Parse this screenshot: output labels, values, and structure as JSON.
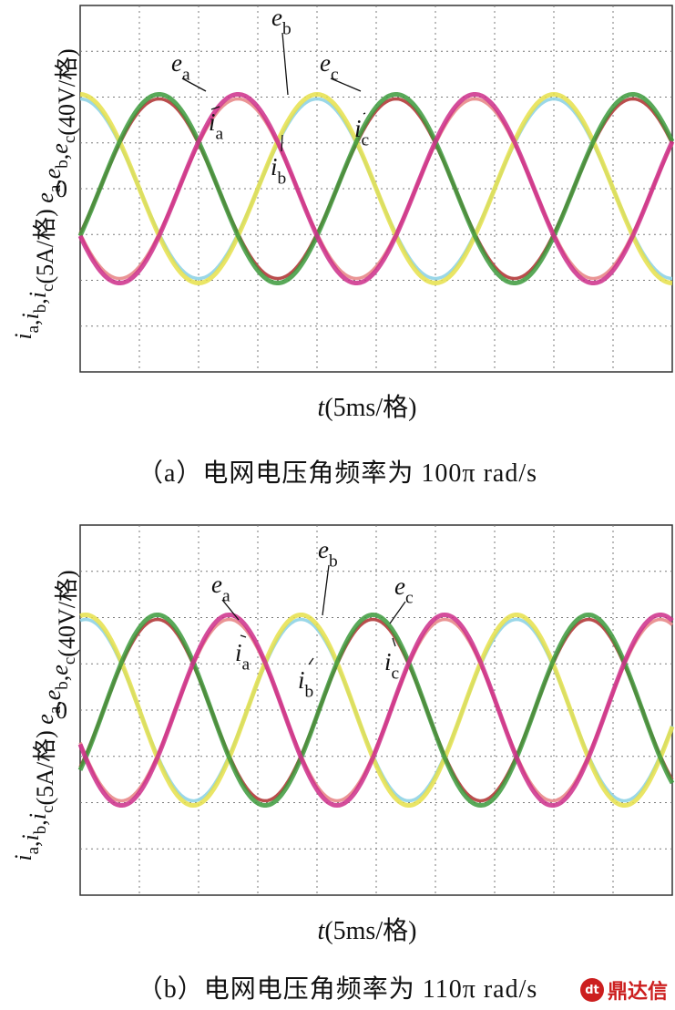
{
  "colors": {
    "a_voltage": "#e6e04a",
    "a_current": "#8fd3e6",
    "b_voltage": "#3c9a3c",
    "b_current": "#b33a3a",
    "c_voltage": "#cc2e8a",
    "c_current": "#e8898a",
    "grid": "#7a7a7a",
    "frame": "#333333",
    "watermark": "#cc1f1f"
  },
  "chart_data": [
    {
      "type": "line",
      "panel": "a",
      "caption": "（a）电网电压角频率为 100π rad/s",
      "y_axis_label": "i_a,i_b,i_c(5A/格)  e_a,e_b,e_c(40V/格)",
      "y_tick_label": "0",
      "x_axis_label": "t(5ms/格)",
      "x_divisions": 10,
      "y_divisions": 8,
      "grid": true,
      "amplitude_div": 2.0,
      "period_div": 4.0,
      "series": [
        {
          "name": "e_a",
          "phase_deg": 0,
          "color_key": "a_voltage"
        },
        {
          "name": "i_a",
          "phase_deg": 0,
          "color_key": "a_current"
        },
        {
          "name": "e_b",
          "phase_deg": -120,
          "color_key": "b_voltage"
        },
        {
          "name": "i_b",
          "phase_deg": -120,
          "color_key": "b_current"
        },
        {
          "name": "e_c",
          "phase_deg": 120,
          "color_key": "c_voltage"
        },
        {
          "name": "i_c",
          "phase_deg": 120,
          "color_key": "c_current"
        }
      ],
      "annotations": [
        "e_a",
        "i_a",
        "e_b",
        "i_b",
        "e_c",
        "i_c"
      ]
    },
    {
      "type": "line",
      "panel": "b",
      "caption": "（b）电网电压角频率为 110π rad/s",
      "y_axis_label": "i_a,i_b,i_c(5A/格)  e_a,e_b,e_c(40V/格)",
      "y_tick_label": "0",
      "x_axis_label": "t(5ms/格)",
      "x_divisions": 10,
      "y_divisions": 8,
      "grid": true,
      "amplitude_div": 2.0,
      "period_div": 3.64,
      "series": [
        {
          "name": "e_a",
          "phase_deg": 0,
          "color_key": "a_voltage"
        },
        {
          "name": "i_a",
          "phase_deg": 0,
          "color_key": "a_current"
        },
        {
          "name": "e_b",
          "phase_deg": -120,
          "color_key": "b_voltage"
        },
        {
          "name": "i_b",
          "phase_deg": -120,
          "color_key": "b_current"
        },
        {
          "name": "e_c",
          "phase_deg": 120,
          "color_key": "c_voltage"
        },
        {
          "name": "i_c",
          "phase_deg": 120,
          "color_key": "c_current"
        }
      ],
      "annotations": [
        "e_a",
        "i_a",
        "e_b",
        "i_b",
        "e_c",
        "i_c"
      ]
    }
  ],
  "watermark": {
    "logo_text": "dt",
    "text": "鼎达信"
  }
}
